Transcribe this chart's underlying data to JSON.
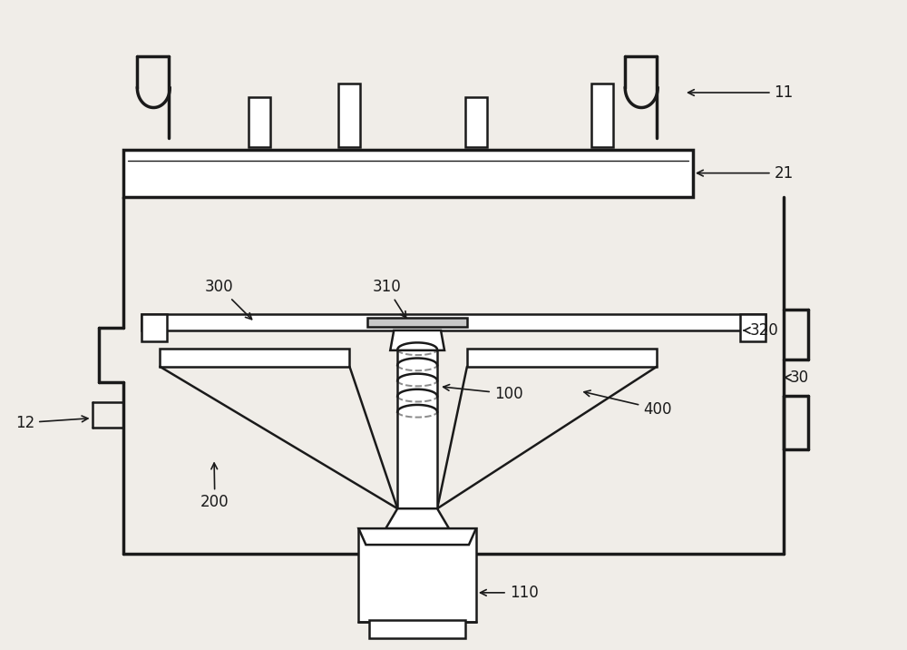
{
  "bg_color": "#f0ede8",
  "line_color": "#1a1a1a",
  "lw": 1.8,
  "tlw": 2.5
}
